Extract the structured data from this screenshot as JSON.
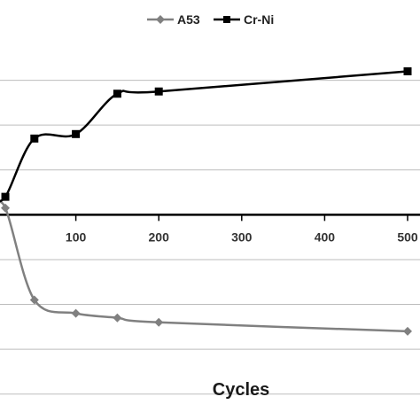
{
  "chart_data": {
    "type": "line",
    "xlabel": "Cycles",
    "ylabel": "",
    "title": "",
    "x_ticks": [
      100,
      200,
      300,
      400,
      500
    ],
    "xlim": [
      0,
      500
    ],
    "ylim": [
      -4.5,
      4
    ],
    "grid": true,
    "legend_position": "top",
    "series": [
      {
        "name": "A53",
        "color": "#808080",
        "marker": "diamond",
        "points": [
          {
            "x": 0,
            "y": 0.1
          },
          {
            "x": 15,
            "y": 0.15
          },
          {
            "x": 50,
            "y": -1.9
          },
          {
            "x": 100,
            "y": -2.2
          },
          {
            "x": 150,
            "y": -2.3
          },
          {
            "x": 200,
            "y": -2.4
          },
          {
            "x": 500,
            "y": -2.6
          }
        ]
      },
      {
        "name": "Cr-Ni",
        "color": "#000000",
        "marker": "square",
        "points": [
          {
            "x": 0,
            "y": 0.4
          },
          {
            "x": 15,
            "y": 0.4
          },
          {
            "x": 50,
            "y": 1.7
          },
          {
            "x": 100,
            "y": 1.8
          },
          {
            "x": 150,
            "y": 2.7
          },
          {
            "x": 200,
            "y": 2.75
          },
          {
            "x": 500,
            "y": 3.2
          }
        ]
      }
    ]
  }
}
